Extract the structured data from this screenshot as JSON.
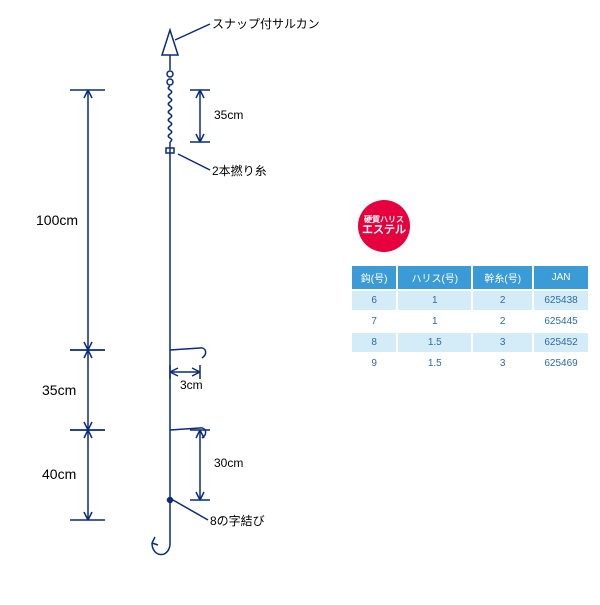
{
  "diagram": {
    "stroke": "#0a2a7a",
    "text_color": "#000000",
    "fontsize": 12,
    "top_label": "スナップ付サルカン",
    "coil_label": "35cm",
    "twist_label": "2本撚り糸",
    "seg_100": "100cm",
    "seg_35": "35cm",
    "seg_40": "40cm",
    "branch_offset": "3cm",
    "branch_len": "30cm",
    "bottom_knot": "8の字結び"
  },
  "badge": {
    "bg": "#e6003e",
    "line1": "硬質ハリス",
    "line2": "エステル"
  },
  "table": {
    "header_bg": "#3b9bd6",
    "row_even_bg": "#d4ecf8",
    "row_odd_bg": "#ffffff",
    "text_color": "#2e6aa6",
    "columns": [
      "鈎(号)",
      "ハリス(号)",
      "幹糸(号)",
      "JAN"
    ],
    "rows": [
      [
        "6",
        "1",
        "2",
        "625438"
      ],
      [
        "7",
        "1",
        "2",
        "625445"
      ],
      [
        "8",
        "1.5",
        "3",
        "625452"
      ],
      [
        "9",
        "1.5",
        "3",
        "625469"
      ]
    ]
  }
}
